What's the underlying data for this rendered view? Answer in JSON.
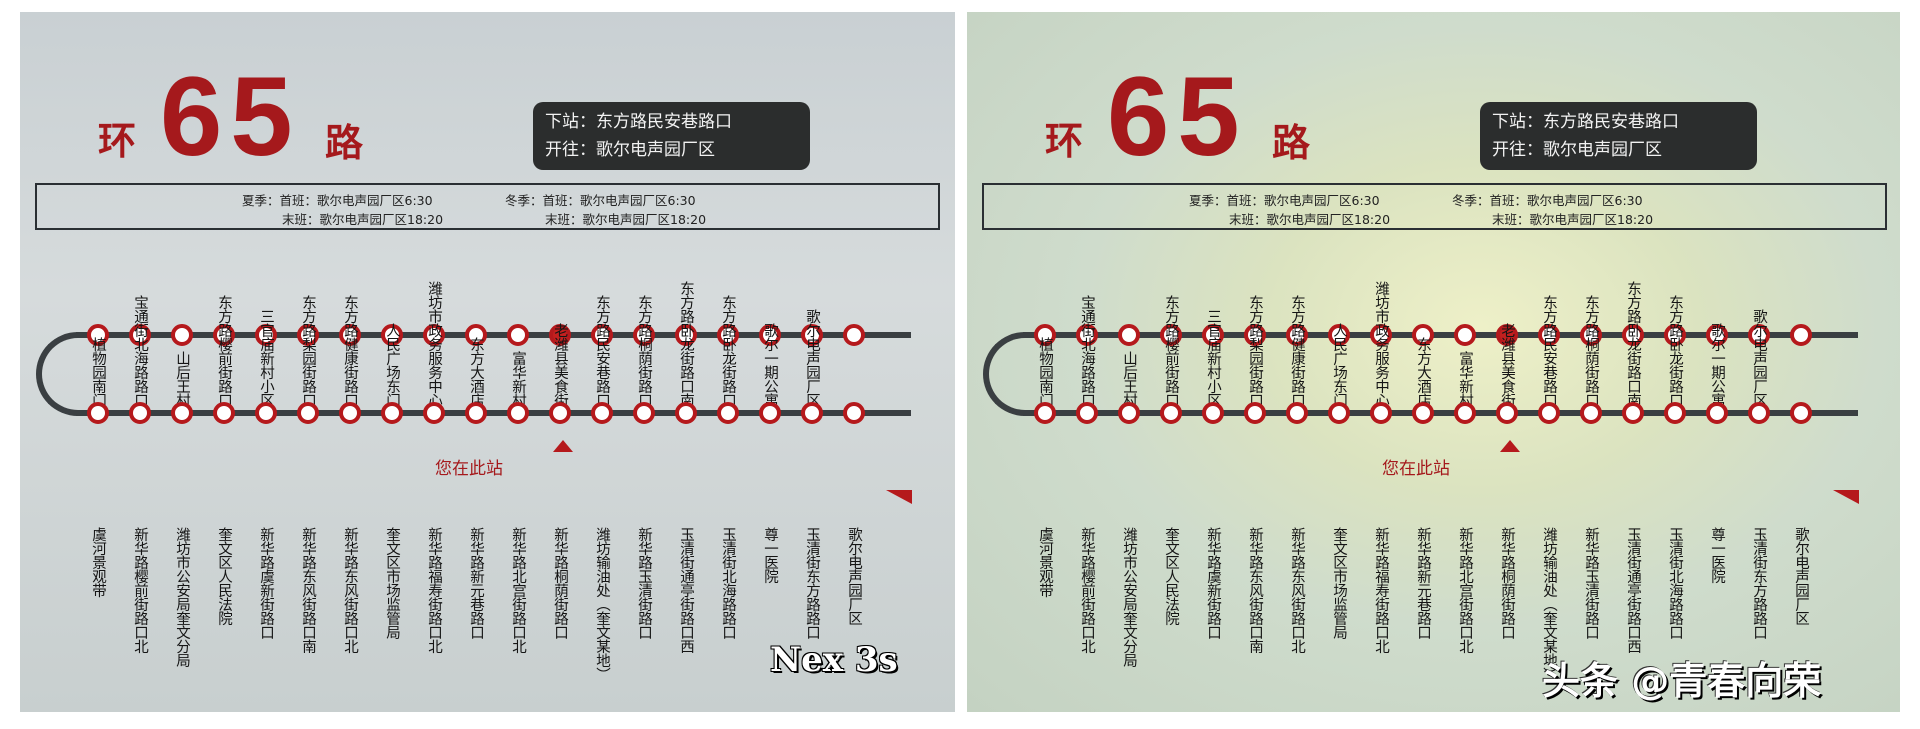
{
  "sign": {
    "prefix": "环",
    "number": "65",
    "suffix": "路",
    "next_stop": "下站：东方路民安巷路口",
    "heading_to": "开往：歌尔电声园厂区",
    "schedule": {
      "summer_first": "夏季：首班：歌尔电声园厂区6:30",
      "summer_last": "末班：歌尔电声园厂区18:20",
      "winter_first": "冬季：首班：歌尔电声园厂区6:30",
      "winter_last": "末班：歌尔电声园厂区18:20"
    },
    "you_are_here": "您在此站",
    "current_stop_index": 11,
    "top_stations": [
      "植物园南门",
      "宝通街北海路路口",
      "山后王村",
      "东方路樱前街路口",
      "三官庙新村小区",
      "东方路梨园街路口",
      "东方路健康街路口",
      "人民广场东门",
      "潍坊市政务服务中心",
      "东方大酒店",
      "富华新村",
      "老潍县美食街",
      "东方路民安巷路口",
      "东方路桐荫街路口",
      "东方路卧龙街路口南",
      "东方路卧龙街路口",
      "歌尔一期公寓",
      "歌尔电声园厂区",
      ""
    ],
    "bottom_stations": [
      "虞河景观带",
      "新华路樱前街路口北",
      "潍坊市公安局奎文分局",
      "奎文区人民法院",
      "新华路虞新街路口",
      "新华路东风街路口南",
      "新华路东风街路口北",
      "奎文区市场监管局",
      "新华路福寿街路口北",
      "新华路新元巷路口",
      "新华路北宫街路口北",
      "新华路桐荫街路口",
      "潍坊输油处（奎文某地）",
      "新华路玉清街路口",
      "玉清街通亭街路口西",
      "玉清街北海路路口",
      "尊一医院",
      "玉清街东方路路口",
      "歌尔电声园厂区"
    ],
    "colors": {
      "route_red": "#a5191c",
      "track": "#3a3f42",
      "info_box": "#2b2d2d"
    }
  },
  "watermarks": {
    "left": "Nex 3s",
    "right": "头条 @青春向荣"
  }
}
